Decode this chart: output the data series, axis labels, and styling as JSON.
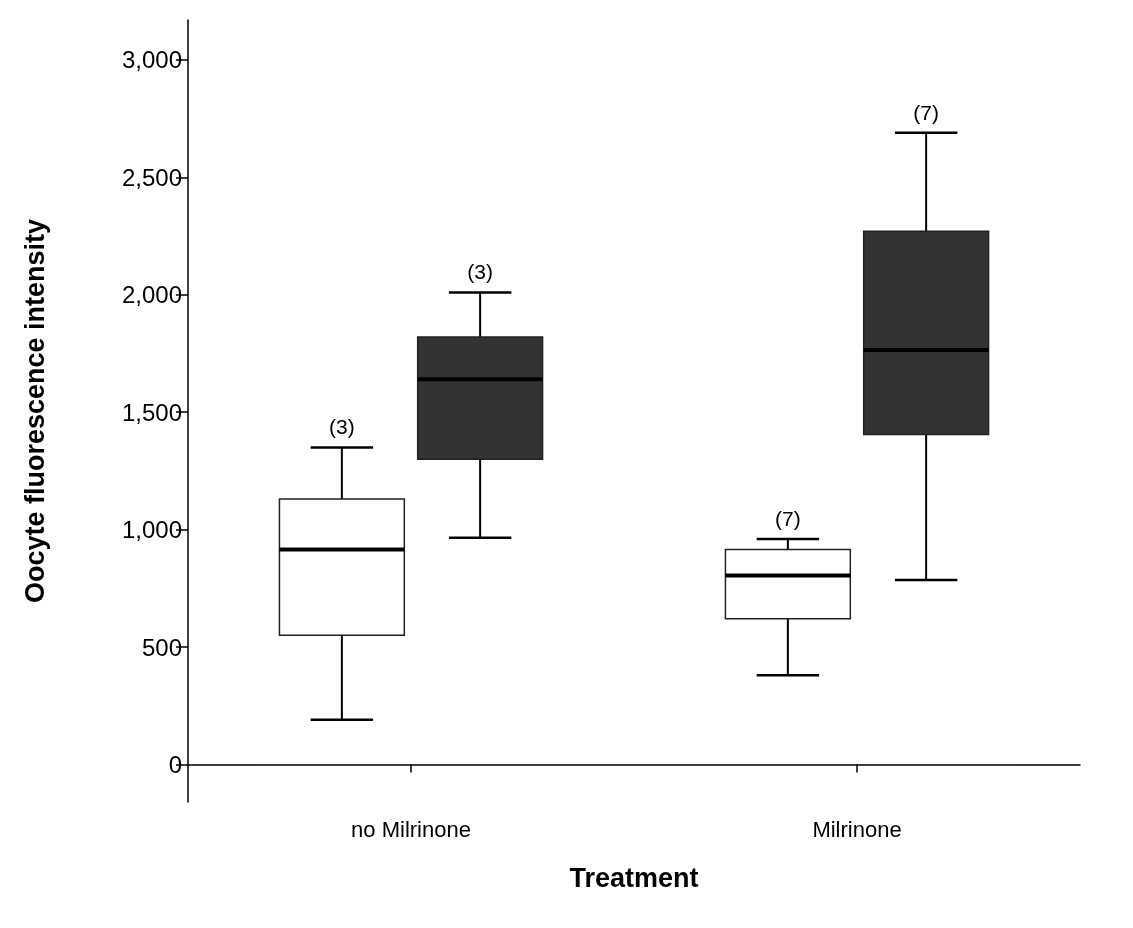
{
  "chart_data": {
    "type": "box",
    "xlabel": "Treatment",
    "ylabel": "Oocyte fluorescence intensity",
    "categories": [
      "no Milrinone",
      "Milrinone"
    ],
    "series": [
      {
        "color": "#ffffff",
        "boxes": [
          {
            "low": 190,
            "q1": 550,
            "median": 915,
            "q3": 1130,
            "high": 1350
          },
          {
            "low": 380,
            "q1": 620,
            "median": 805,
            "q3": 915,
            "high": 960
          }
        ]
      },
      {
        "color": "#333333",
        "boxes": [
          {
            "low": 965,
            "q1": 1300,
            "median": 1640,
            "q3": 1820,
            "high": 2010
          },
          {
            "low": 785,
            "q1": 1405,
            "median": 1765,
            "q3": 2270,
            "high": 2690
          }
        ]
      }
    ],
    "ylim": [
      -160,
      3170
    ],
    "yticks": [
      0,
      {
        "value": 500,
        "label": "500"
      },
      {
        "value": 1000,
        "label": "1,000"
      },
      {
        "value": 1500,
        "label": "1,500"
      },
      {
        "value": 2000,
        "label": "2,000"
      },
      {
        "value": 2500,
        "label": "2,500"
      },
      {
        "value": 3000,
        "label": "3,000"
      }
    ],
    "annotations": [
      "(3)",
      "(3)",
      "(7)",
      "(7)"
    ],
    "grid": false
  }
}
